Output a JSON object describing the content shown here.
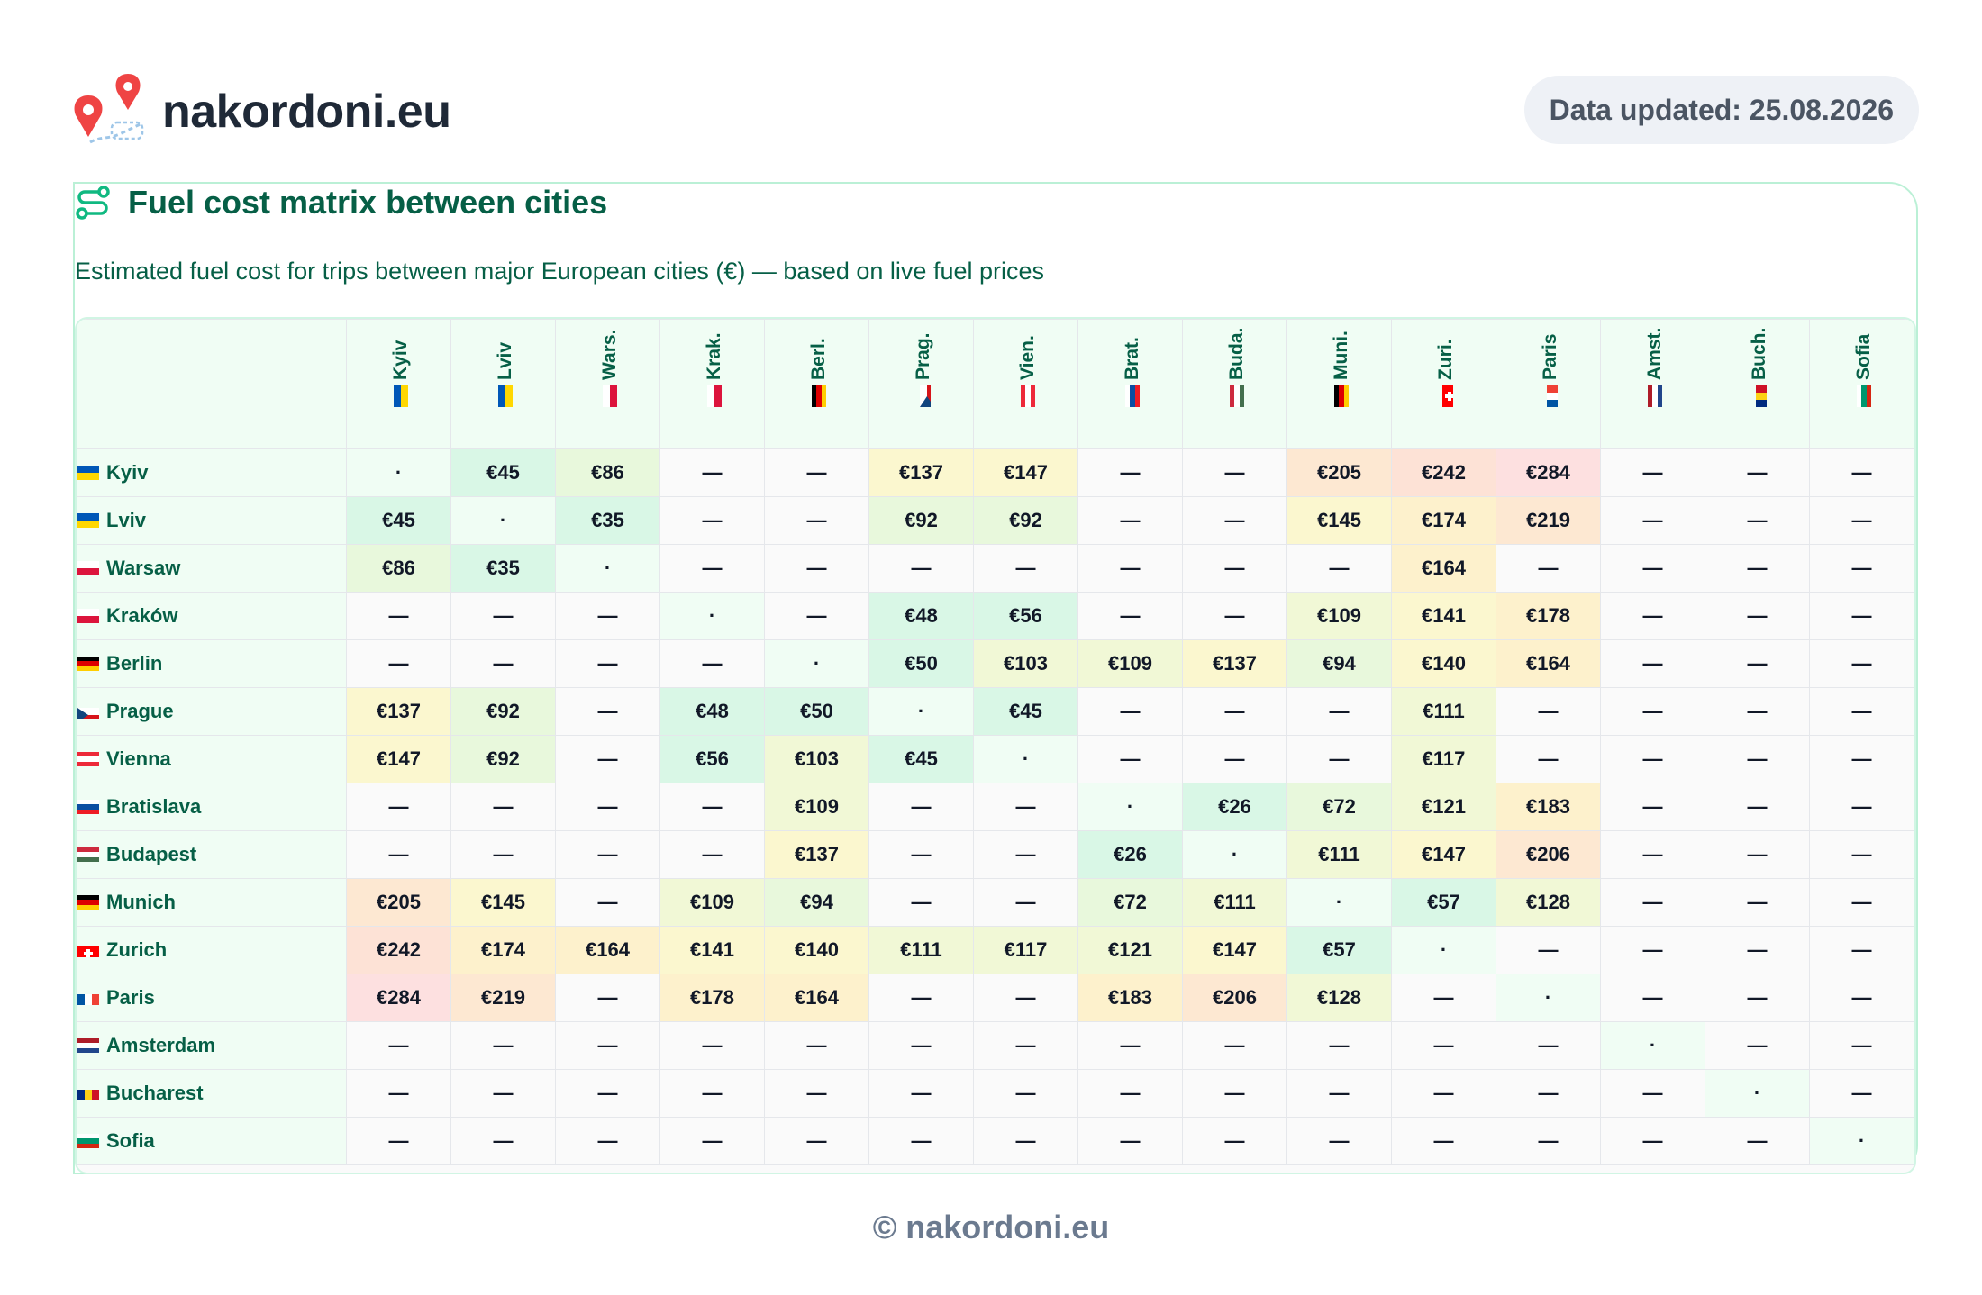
{
  "header": {
    "brand": "nakordoni.eu",
    "updated": "Data updated: 25.08.2026",
    "logo_icon": "map-pins-route-icon"
  },
  "card": {
    "title": "Fuel cost matrix between cities",
    "title_icon": "route-icon",
    "subtitle": "Estimated fuel cost for trips between major European cities (€) — based on live fuel prices"
  },
  "columns": [
    {
      "label": "Kyiv",
      "flag": "UA"
    },
    {
      "label": "Lviv",
      "flag": "UA"
    },
    {
      "label": "Wars.",
      "flag": "PL"
    },
    {
      "label": "Krak.",
      "flag": "PL"
    },
    {
      "label": "Berl.",
      "flag": "DE"
    },
    {
      "label": "Prag.",
      "flag": "CZ"
    },
    {
      "label": "Vien.",
      "flag": "AT"
    },
    {
      "label": "Brat.",
      "flag": "SK"
    },
    {
      "label": "Buda.",
      "flag": "HU"
    },
    {
      "label": "Muni.",
      "flag": "DE"
    },
    {
      "label": "Zuri.",
      "flag": "CH"
    },
    {
      "label": "Paris",
      "flag": "FR"
    },
    {
      "label": "Amst.",
      "flag": "NL"
    },
    {
      "label": "Buch.",
      "flag": "RO"
    },
    {
      "label": "Sofia",
      "flag": "BG"
    }
  ],
  "rows": [
    {
      "label": "Kyiv",
      "flag": "UA",
      "cells": [
        "·",
        "€45",
        "€86",
        "—",
        "—",
        "€137",
        "€147",
        "—",
        "—",
        "€205",
        "€242",
        "€284",
        "—",
        "—",
        "—"
      ]
    },
    {
      "label": "Lviv",
      "flag": "UA",
      "cells": [
        "€45",
        "·",
        "€35",
        "—",
        "—",
        "€92",
        "€92",
        "—",
        "—",
        "€145",
        "€174",
        "€219",
        "—",
        "—",
        "—"
      ]
    },
    {
      "label": "Warsaw",
      "flag": "PL",
      "cells": [
        "€86",
        "€35",
        "·",
        "—",
        "—",
        "—",
        "—",
        "—",
        "—",
        "—",
        "€164",
        "—",
        "—",
        "—",
        "—"
      ]
    },
    {
      "label": "Kraków",
      "flag": "PL",
      "cells": [
        "—",
        "—",
        "—",
        "·",
        "—",
        "€48",
        "€56",
        "—",
        "—",
        "€109",
        "€141",
        "€178",
        "—",
        "—",
        "—"
      ]
    },
    {
      "label": "Berlin",
      "flag": "DE",
      "cells": [
        "—",
        "—",
        "—",
        "—",
        "·",
        "€50",
        "€103",
        "€109",
        "€137",
        "€94",
        "€140",
        "€164",
        "—",
        "—",
        "—"
      ]
    },
    {
      "label": "Prague",
      "flag": "CZ",
      "cells": [
        "€137",
        "€92",
        "—",
        "€48",
        "€50",
        "·",
        "€45",
        "—",
        "—",
        "—",
        "€111",
        "—",
        "—",
        "—",
        "—"
      ]
    },
    {
      "label": "Vienna",
      "flag": "AT",
      "cells": [
        "€147",
        "€92",
        "—",
        "€56",
        "€103",
        "€45",
        "·",
        "—",
        "—",
        "—",
        "€117",
        "—",
        "—",
        "—",
        "—"
      ]
    },
    {
      "label": "Bratislava",
      "flag": "SK",
      "cells": [
        "—",
        "—",
        "—",
        "—",
        "€109",
        "—",
        "—",
        "·",
        "€26",
        "€72",
        "€121",
        "€183",
        "—",
        "—",
        "—"
      ]
    },
    {
      "label": "Budapest",
      "flag": "HU",
      "cells": [
        "—",
        "—",
        "—",
        "—",
        "€137",
        "—",
        "—",
        "€26",
        "·",
        "€111",
        "€147",
        "€206",
        "—",
        "—",
        "—"
      ]
    },
    {
      "label": "Munich",
      "flag": "DE",
      "cells": [
        "€205",
        "€145",
        "—",
        "€109",
        "€94",
        "—",
        "—",
        "€72",
        "€111",
        "·",
        "€57",
        "€128",
        "—",
        "—",
        "—"
      ]
    },
    {
      "label": "Zurich",
      "flag": "CH",
      "cells": [
        "€242",
        "€174",
        "€164",
        "€141",
        "€140",
        "€111",
        "€117",
        "€121",
        "€147",
        "€57",
        "·",
        "—",
        "—",
        "—",
        "—"
      ]
    },
    {
      "label": "Paris",
      "flag": "FR",
      "cells": [
        "€284",
        "€219",
        "—",
        "€178",
        "€164",
        "—",
        "—",
        "€183",
        "€206",
        "€128",
        "—",
        "·",
        "—",
        "—",
        "—"
      ]
    },
    {
      "label": "Amsterdam",
      "flag": "NL",
      "cells": [
        "—",
        "—",
        "—",
        "—",
        "—",
        "—",
        "—",
        "—",
        "—",
        "—",
        "—",
        "—",
        "·",
        "—",
        "—"
      ]
    },
    {
      "label": "Bucharest",
      "flag": "RO",
      "cells": [
        "—",
        "—",
        "—",
        "—",
        "—",
        "—",
        "—",
        "—",
        "—",
        "—",
        "—",
        "—",
        "—",
        "·",
        "—"
      ]
    },
    {
      "label": "Sofia",
      "flag": "BG",
      "cells": [
        "—",
        "—",
        "—",
        "—",
        "—",
        "—",
        "—",
        "—",
        "—",
        "—",
        "—",
        "—",
        "—",
        "—",
        "·"
      ]
    }
  ],
  "colors": {
    "accent": "#065f46",
    "border": "#a7f3d0",
    "low": "#d1fae5",
    "high": "#fee2e2"
  },
  "footer": "© nakordoni.eu"
}
